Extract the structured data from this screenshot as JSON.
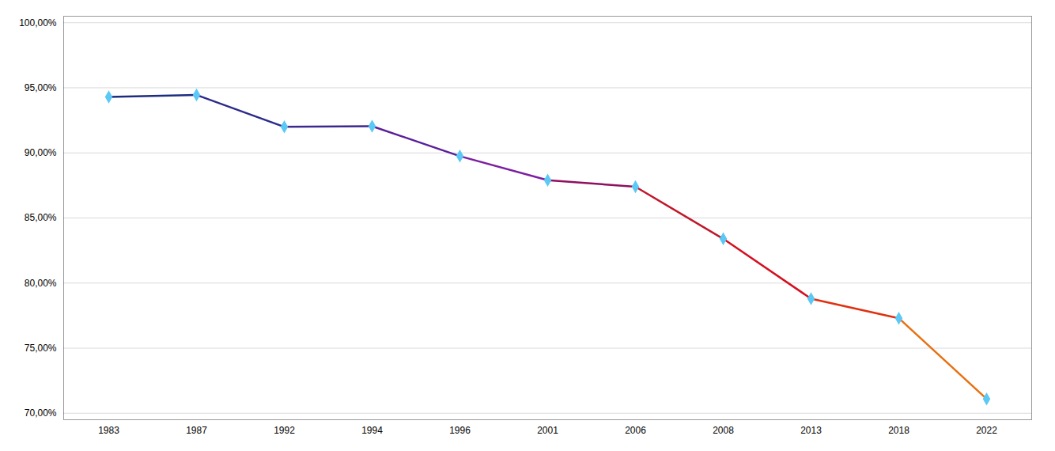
{
  "chart_data": {
    "type": "line",
    "categories": [
      "1983",
      "1987",
      "1992",
      "1994",
      "1996",
      "2001",
      "2006",
      "2008",
      "2013",
      "2018",
      "2022"
    ],
    "values": [
      0.943,
      0.9445,
      0.92,
      0.9205,
      0.8975,
      0.879,
      0.874,
      0.834,
      0.788,
      0.773,
      0.711
    ],
    "colors": [
      "#1c2d80",
      "#2b2a8a",
      "#3d2890",
      "#5a1f9a",
      "#7b1fa2",
      "#8e1060",
      "#c0182a",
      "#d41020",
      "#e03010",
      "#e87010"
    ],
    "color": "#5bc8f5",
    "marker": "diamond",
    "ylim": [
      0.695,
      1.005
    ],
    "yticks": [
      {
        "value": 1.0,
        "label": "100,00%"
      },
      {
        "value": 0.95,
        "label": "95,00%"
      },
      {
        "value": 0.9,
        "label": "90,00%"
      },
      {
        "value": 0.85,
        "label": "85,00%"
      },
      {
        "value": 0.8,
        "label": "80,00%"
      },
      {
        "value": 0.75,
        "label": "75,00%"
      },
      {
        "value": 0.7,
        "label": "70,00%"
      }
    ],
    "grid": true
  }
}
